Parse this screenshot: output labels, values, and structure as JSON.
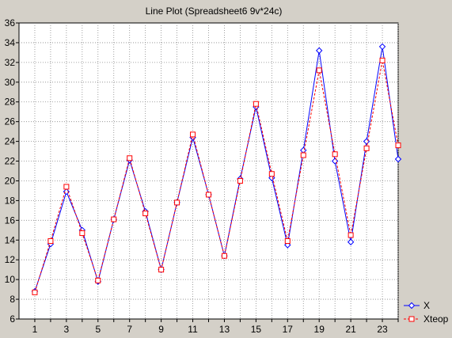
{
  "chart_data": {
    "type": "line",
    "title": "Line Plot (Spreadsheet6 9v*24c)",
    "xlabel": "",
    "ylabel": "",
    "xlim": [
      0,
      24
    ],
    "ylim": [
      6,
      36
    ],
    "xticks": [
      1,
      3,
      5,
      7,
      9,
      11,
      13,
      15,
      17,
      19,
      21,
      23
    ],
    "yticks": [
      6,
      8,
      10,
      12,
      14,
      16,
      18,
      20,
      22,
      24,
      26,
      28,
      30,
      32,
      34,
      36
    ],
    "grid": true,
    "legend_position": "bottom-right",
    "x": [
      1,
      2,
      3,
      4,
      5,
      6,
      7,
      8,
      9,
      10,
      11,
      12,
      13,
      14,
      15,
      16,
      17,
      18,
      19,
      20,
      21,
      22,
      23,
      24
    ],
    "series": [
      {
        "name": "X",
        "color": "#0000ff",
        "line_style": "solid",
        "marker": "diamond",
        "values": [
          8.8,
          13.6,
          18.9,
          15.0,
          9.8,
          16.1,
          22.1,
          16.9,
          11.0,
          17.8,
          24.4,
          18.6,
          12.4,
          20.2,
          27.5,
          20.3,
          13.5,
          23.1,
          33.2,
          22.0,
          13.8,
          24.0,
          33.6,
          22.2
        ]
      },
      {
        "name": "Xteop",
        "color": "#ff0000",
        "line_style": "dashed",
        "marker": "square",
        "values": [
          8.7,
          13.9,
          19.4,
          14.7,
          9.9,
          16.1,
          22.3,
          16.7,
          11.0,
          17.8,
          24.7,
          18.6,
          12.4,
          20.0,
          27.8,
          20.7,
          13.9,
          22.6,
          31.2,
          22.7,
          14.5,
          23.3,
          32.2,
          23.6
        ]
      }
    ]
  }
}
